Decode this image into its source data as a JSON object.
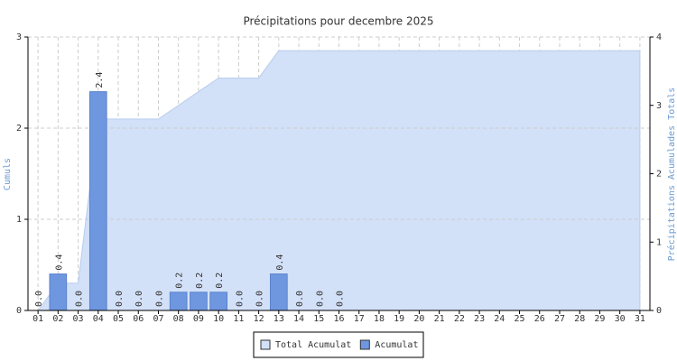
{
  "chart_data": {
    "type": "bar",
    "title": "Précipitations pour decembre 2025",
    "ylabel": "Cumuls",
    "y2label": "Précipitations Acumulades Totals",
    "categories": [
      "01",
      "02",
      "03",
      "04",
      "05",
      "06",
      "07",
      "08",
      "09",
      "10",
      "11",
      "12",
      "13",
      "14",
      "15",
      "16",
      "17",
      "18",
      "19",
      "20",
      "21",
      "22",
      "23",
      "24",
      "25",
      "26",
      "27",
      "28",
      "29",
      "30",
      "31"
    ],
    "series": [
      {
        "name": "Total Acumulat",
        "type": "area",
        "axis": "y2",
        "color": "#d2e0f8",
        "values": [
          0,
          0.4,
          0.4,
          2.8,
          2.8,
          2.8,
          2.8,
          3.0,
          3.2,
          3.4,
          3.4,
          3.4,
          3.8,
          3.8,
          3.8,
          3.8,
          3.8,
          3.8,
          3.8,
          3.8,
          3.8,
          3.8,
          3.8,
          3.8,
          3.8,
          3.8,
          3.8,
          3.8,
          3.8,
          3.8,
          3.8
        ]
      },
      {
        "name": "Acumulat",
        "type": "bar",
        "color": "#6f97e0",
        "values": [
          0,
          0.4,
          0,
          2.4,
          0,
          0,
          0,
          0.2,
          0.2,
          0.2,
          0,
          0,
          0.4,
          0,
          0,
          0,
          null,
          null,
          null,
          null,
          null,
          null,
          null,
          null,
          null,
          null,
          null,
          null,
          null,
          null,
          null
        ],
        "value_labels": [
          "0.0",
          "0.4",
          "0.0",
          "2.4",
          "0.0",
          "0.0",
          "0.0",
          "0.2",
          "0.2",
          "0.2",
          "0.0",
          "0.0",
          "0.4",
          "0.0",
          "0.0",
          "0.0",
          null,
          null,
          null,
          null,
          null,
          null,
          null,
          null,
          null,
          null,
          null,
          null,
          null,
          null,
          null
        ]
      }
    ],
    "ylim": [
      0,
      3
    ],
    "yticks": [
      0,
      1,
      2,
      3
    ],
    "y2lim": [
      0,
      4
    ],
    "y2ticks": [
      0,
      1,
      2,
      3,
      4
    ],
    "grid": true,
    "legend": "bottom"
  }
}
